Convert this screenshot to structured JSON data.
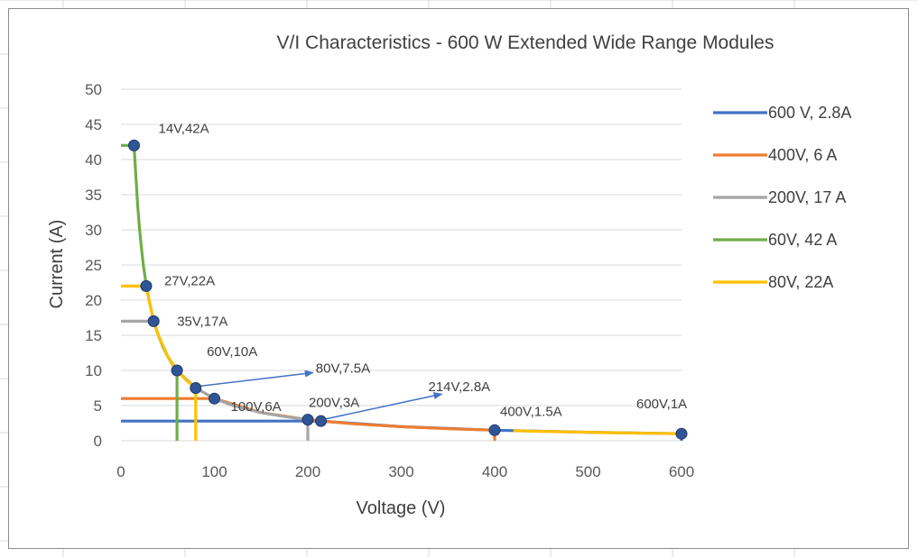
{
  "chart_data": {
    "type": "line",
    "title": "V/I Characteristics - 600 W Extended Wide Range Modules",
    "xlabel": "Voltage (V)",
    "ylabel": "Current (A)",
    "xlim": [
      0,
      600
    ],
    "ylim": [
      0,
      50
    ],
    "x_ticks": [
      "0",
      "100",
      "200",
      "300",
      "400",
      "500",
      "600"
    ],
    "y_ticks": [
      "0",
      "5",
      "10",
      "15",
      "20",
      "25",
      "30",
      "35",
      "40",
      "45",
      "50"
    ],
    "grid": "horizontal",
    "legend_position": "right",
    "series": [
      {
        "name": "600 V, 2.8A",
        "color": "#4472C4",
        "x": [
          0,
          214,
          300,
          400,
          500,
          600,
          600
        ],
        "y": [
          2.8,
          2.8,
          2,
          1.5,
          1.2,
          1,
          0
        ]
      },
      {
        "name": "400V, 6 A",
        "color": "#ED7D31",
        "x": [
          0,
          100,
          150,
          200,
          214,
          250,
          300,
          350,
          400,
          400
        ],
        "y": [
          6,
          6,
          4,
          3,
          2.8,
          2.4,
          2,
          1.71,
          1.5,
          0
        ]
      },
      {
        "name": "200V, 17 A",
        "color": "#A5A5A5",
        "x": [
          0,
          35,
          40,
          50,
          60,
          80,
          100,
          120,
          150,
          175,
          200,
          200
        ],
        "y": [
          17,
          17,
          15,
          12,
          10,
          7.5,
          6,
          5,
          4,
          3.43,
          3,
          0
        ]
      },
      {
        "name": "60V, 42 A",
        "color": "#70AD47",
        "x": [
          0,
          14,
          16,
          18,
          20,
          22,
          24,
          27,
          30,
          35,
          40,
          45,
          50,
          55,
          60,
          60
        ],
        "y": [
          42,
          42,
          37.5,
          33.3,
          30,
          27.3,
          25,
          22.2,
          20,
          17.1,
          15,
          13.3,
          12,
          10.9,
          10,
          0
        ]
      },
      {
        "name": "80V, 22A",
        "color": "#FFC000",
        "x": [
          0,
          27,
          30,
          35,
          40,
          50,
          60,
          70,
          80,
          80
        ],
        "y": [
          22,
          22,
          20,
          17.1,
          15,
          12,
          10,
          8.6,
          7.5,
          0
        ]
      },
      {
        "name": "80V, 22A",
        "color": "#FFC000",
        "x": [
          420,
          450,
          500,
          550,
          600
        ],
        "y": [
          1.43,
          1.33,
          1.2,
          1.09,
          1
        ]
      }
    ],
    "points": [
      {
        "label": "14V,42A",
        "x": 14,
        "y": 42
      },
      {
        "label": "27V,22A",
        "x": 27,
        "y": 22
      },
      {
        "label": "35V,17A",
        "x": 35,
        "y": 17
      },
      {
        "label": "60V,10A",
        "x": 60,
        "y": 10
      },
      {
        "label": "80V,7.5A",
        "x": 80,
        "y": 7.5
      },
      {
        "label": "100V,6A",
        "x": 100,
        "y": 6
      },
      {
        "label": "200V,3A",
        "x": 200,
        "y": 3
      },
      {
        "label": "214V,2.8A",
        "x": 214,
        "y": 2.8
      },
      {
        "label": "400V,1.5A",
        "x": 400,
        "y": 1.5
      },
      {
        "label": "600V,1A",
        "x": 600,
        "y": 1
      }
    ],
    "legend": [
      "600 V, 2.8A",
      "400V, 6 A",
      "200V, 17 A",
      "60V, 42 A",
      "80V, 22A"
    ]
  }
}
